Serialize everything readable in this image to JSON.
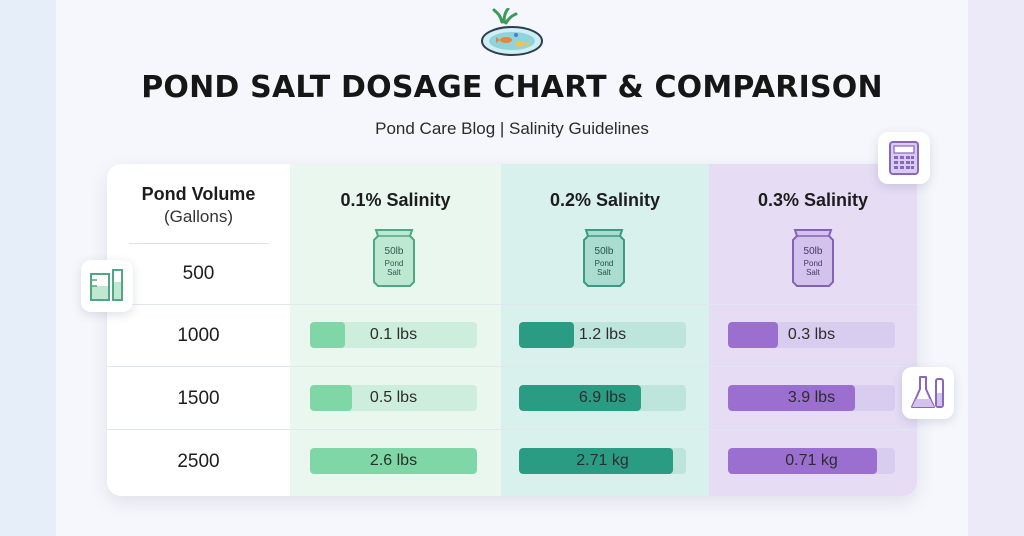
{
  "header": {
    "title": "POND SALT DOSAGE CHART & COMPARISON",
    "subtitle": "Pond Care Blog | Salinity Guidelines"
  },
  "table": {
    "volume_header": "Pond Volume",
    "volume_unit": "(Gallons)",
    "columns": [
      {
        "label": "0.1% Salinity",
        "bag_text_1": "50lb",
        "bag_text_2": "Pond",
        "bag_text_3": "Salt",
        "accent": "#7fd6a6",
        "track": "#cdeedd"
      },
      {
        "label": "0.2% Salinity",
        "bag_text_1": "50lb",
        "bag_text_2": "Pond",
        "bag_text_3": "Salt",
        "accent": "#2a9c84",
        "track": "#bde5dc"
      },
      {
        "label": "0.3% Salinity",
        "bag_text_1": "50lb",
        "bag_text_2": "Pond",
        "bag_text_3": "Salt",
        "accent": "#9a6fd0",
        "track": "#d9cdef"
      }
    ],
    "rows": [
      {
        "volume": "500",
        "cells": []
      },
      {
        "volume": "1000",
        "cells": [
          {
            "label": "0.1 lbs",
            "fill": 0.21
          },
          {
            "label": "1.2 lbs",
            "fill": 0.33
          },
          {
            "label": "0.3 lbs",
            "fill": 0.3
          }
        ]
      },
      {
        "volume": "1500",
        "cells": [
          {
            "label": "0.5 lbs",
            "fill": 0.25
          },
          {
            "label": "6.9 lbs",
            "fill": 0.73
          },
          {
            "label": "3.9 lbs",
            "fill": 0.76
          }
        ]
      },
      {
        "volume": "2500",
        "cells": [
          {
            "label": "2.6 lbs",
            "fill": 1.0
          },
          {
            "label": "2.71 kg",
            "fill": 0.92
          },
          {
            "label": "0.71 kg",
            "fill": 0.89
          }
        ]
      }
    ]
  },
  "icons": {
    "logo": "pond-fish-icon",
    "calculator": "calculator-icon",
    "beaker": "measuring-beaker-icon",
    "flask": "lab-flask-icon"
  }
}
